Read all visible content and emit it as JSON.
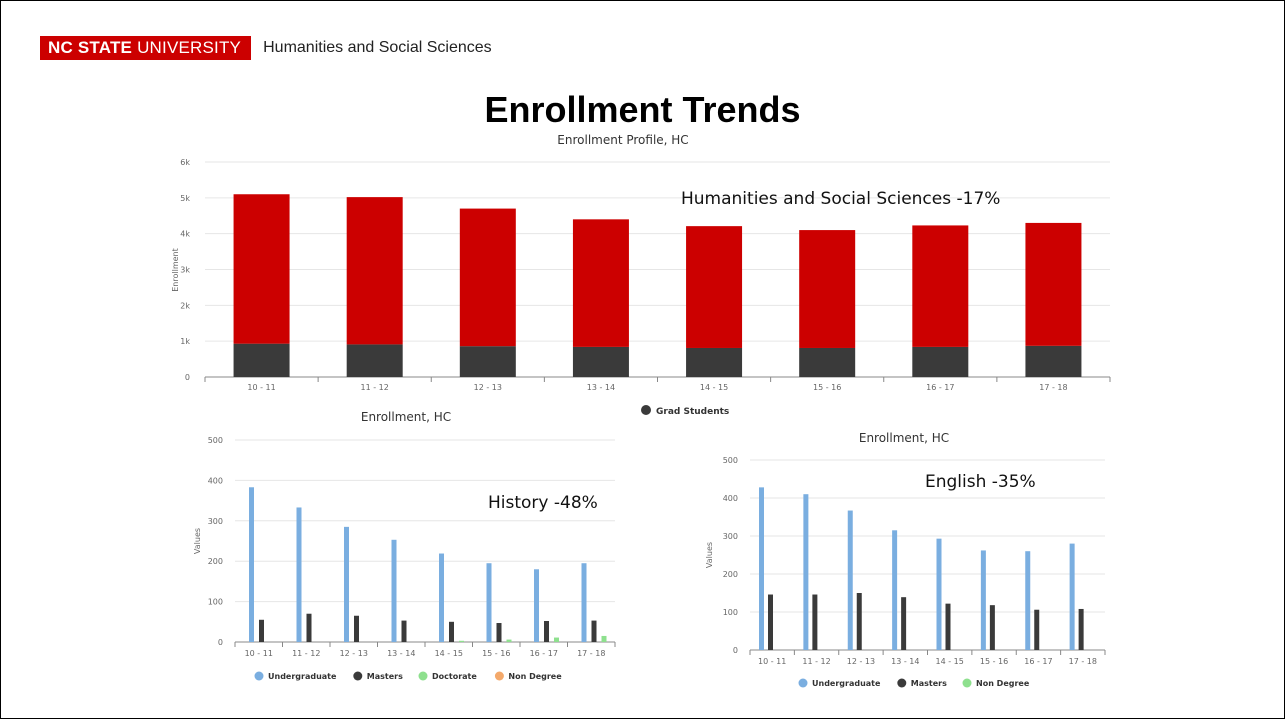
{
  "header": {
    "logo_bold": "NC STATE",
    "logo_rest": "UNIVERSITY",
    "college": "Humanities and Social Sciences"
  },
  "slide": {
    "title": "Enrollment Trends"
  },
  "colors": {
    "red": "#cc0000",
    "dark": "#3a3a3a",
    "blue": "#7aaee0",
    "green": "#8ee08e",
    "orange": "#f4a96b",
    "grid": "#e6e6e6",
    "axis": "#888888"
  },
  "chart_data": [
    {
      "type": "bar",
      "stacked": true,
      "title": "Enrollment Profile, HC",
      "ylabel": "Enrollment",
      "annotation": "Humanities and Social Sciences -17%",
      "categories": [
        "10 - 11",
        "11 - 12",
        "12 - 13",
        "13 - 14",
        "14 - 15",
        "15 - 16",
        "16 - 17",
        "17 - 18"
      ],
      "yticks": [
        "0",
        "1k",
        "2k",
        "3k",
        "4k",
        "5k",
        "6k"
      ],
      "ylim": [
        0,
        6000
      ],
      "series": [
        {
          "name": "Grad Students",
          "color": "#3a3a3a",
          "values": [
            930,
            910,
            860,
            840,
            810,
            810,
            840,
            870
          ]
        },
        {
          "color": "#cc0000",
          "values": [
            4170,
            4110,
            3840,
            3560,
            3400,
            3290,
            3390,
            3430
          ]
        }
      ],
      "legend": [
        {
          "name": "Grad Students",
          "color": "#3a3a3a"
        }
      ]
    },
    {
      "type": "bar",
      "title": "Enrollment, HC",
      "ylabel": "Values",
      "annotation": "History -48%",
      "categories": [
        "10 - 11",
        "11 - 12",
        "12 - 13",
        "13 - 14",
        "14 - 15",
        "15 - 16",
        "16 - 17",
        "17 - 18"
      ],
      "yticks": [
        "0",
        "100",
        "200",
        "300",
        "400",
        "500"
      ],
      "ylim": [
        0,
        500
      ],
      "series": [
        {
          "name": "Undergraduate",
          "color": "#7aaee0",
          "values": [
            383,
            333,
            285,
            253,
            219,
            195,
            180,
            195
          ]
        },
        {
          "name": "Masters",
          "color": "#3a3a3a",
          "values": [
            55,
            70,
            65,
            53,
            50,
            47,
            52,
            53
          ]
        },
        {
          "name": "Doctorate",
          "color": "#8ee08e",
          "values": [
            0,
            0,
            0,
            0,
            3,
            6,
            11,
            15
          ]
        },
        {
          "name": "Non Degree",
          "color": "#f4a96b",
          "values": [
            0,
            0,
            0,
            0,
            0,
            0,
            0,
            0
          ]
        }
      ],
      "legend": [
        {
          "name": "Undergraduate",
          "color": "#7aaee0"
        },
        {
          "name": "Masters",
          "color": "#3a3a3a"
        },
        {
          "name": "Doctorate",
          "color": "#8ee08e"
        },
        {
          "name": "Non Degree",
          "color": "#f4a96b"
        }
      ]
    },
    {
      "type": "bar",
      "title": "Enrollment, HC",
      "ylabel": "Values",
      "annotation": "English -35%",
      "categories": [
        "10 - 11",
        "11 - 12",
        "12 - 13",
        "13 - 14",
        "14 - 15",
        "15 - 16",
        "16 - 17",
        "17 - 18"
      ],
      "yticks": [
        "0",
        "100",
        "200",
        "300",
        "400",
        "500"
      ],
      "ylim": [
        0,
        500
      ],
      "series": [
        {
          "name": "Undergraduate",
          "color": "#7aaee0",
          "values": [
            428,
            410,
            367,
            315,
            293,
            262,
            260,
            280
          ]
        },
        {
          "name": "Masters",
          "color": "#3a3a3a",
          "values": [
            146,
            146,
            150,
            139,
            122,
            118,
            106,
            108
          ]
        },
        {
          "name": "Non Degree",
          "color": "#8ee08e",
          "values": [
            0,
            0,
            0,
            0,
            0,
            0,
            0,
            0
          ]
        }
      ],
      "legend": [
        {
          "name": "Undergraduate",
          "color": "#7aaee0"
        },
        {
          "name": "Masters",
          "color": "#3a3a3a"
        },
        {
          "name": "Non Degree",
          "color": "#8ee08e"
        }
      ]
    }
  ]
}
